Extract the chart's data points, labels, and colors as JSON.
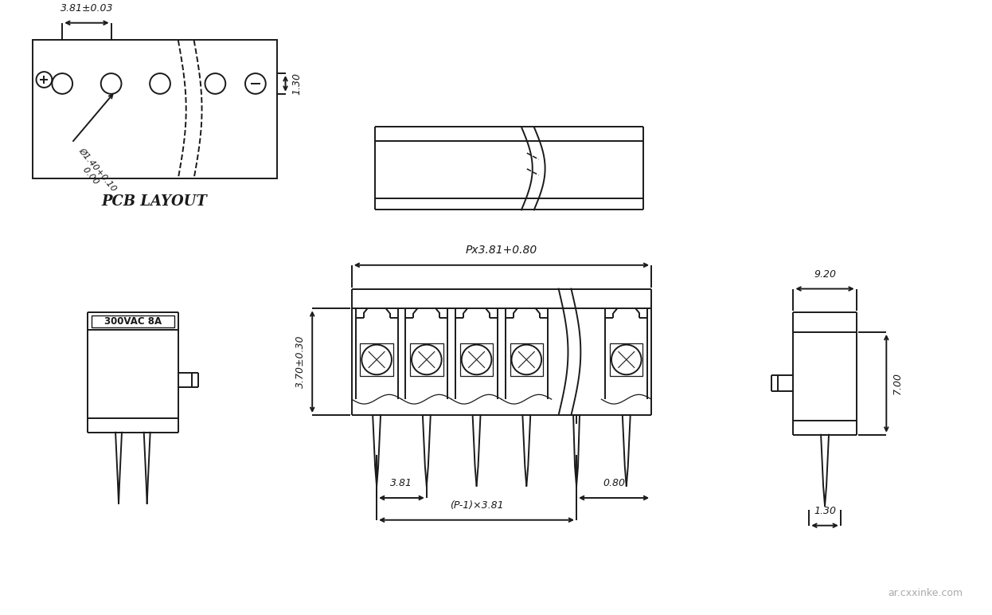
{
  "bg_color": "#ffffff",
  "line_color": "#1a1a1a",
  "title": "PCB LAYOUT",
  "dim_381_03": "3.81±0.03",
  "dim_phi": "Ø1.40+0.10\n      0.00",
  "dim_130_right": "1.30",
  "dim_px381": "Px3.81+0.80",
  "dim_370": "3.70±0.30",
  "dim_381_bot": "3.81",
  "dim_p1x381": "(P-1)×3.81",
  "dim_080": "0.80",
  "dim_700": "7.00",
  "dim_920": "9.20",
  "dim_130_bot": "1.30",
  "label_300vac": "300VAC 8A",
  "watermark": "ar.cxxinke.com"
}
